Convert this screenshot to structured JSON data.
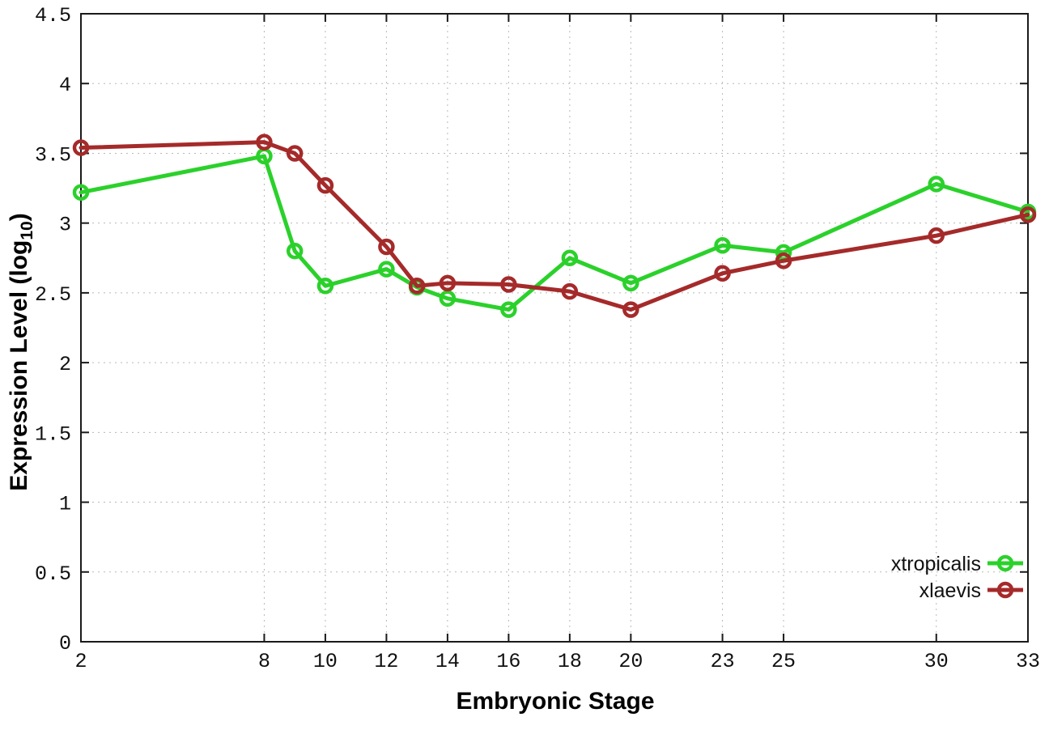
{
  "page": {
    "background": "#ffffff"
  },
  "chart_data": {
    "type": "line",
    "title": "",
    "xlabel": "Embryonic Stage",
    "ylabel_parts": {
      "pre": "Expression Level (log",
      "sub": "10",
      "post": ")"
    },
    "xlim": [
      2,
      33
    ],
    "ylim": [
      0,
      4.5
    ],
    "grid": true,
    "grid_style": "dotted",
    "legend_position": "inside-bottom-right",
    "x_ticks": [
      2,
      8,
      10,
      12,
      14,
      16,
      18,
      20,
      23,
      25,
      30,
      33
    ],
    "y_ticks": [
      0,
      0.5,
      1,
      1.5,
      2,
      2.5,
      3,
      3.5,
      4,
      4.5
    ],
    "x": [
      2,
      8,
      9,
      10,
      12,
      13,
      14,
      16,
      18,
      20,
      23,
      25,
      30,
      33
    ],
    "series": [
      {
        "name": "xtropicalis",
        "color": "#2bd12b",
        "marker": "open-circle",
        "values": [
          3.22,
          3.48,
          2.8,
          2.55,
          2.67,
          2.54,
          2.46,
          2.38,
          2.75,
          2.57,
          2.84,
          2.79,
          3.28,
          3.08
        ]
      },
      {
        "name": "xlaevis",
        "color": "#a52a2a",
        "marker": "open-circle",
        "values": [
          3.54,
          3.58,
          3.5,
          3.27,
          2.83,
          2.55,
          2.57,
          2.56,
          2.51,
          2.38,
          2.64,
          2.73,
          2.91,
          3.06
        ]
      }
    ]
  }
}
